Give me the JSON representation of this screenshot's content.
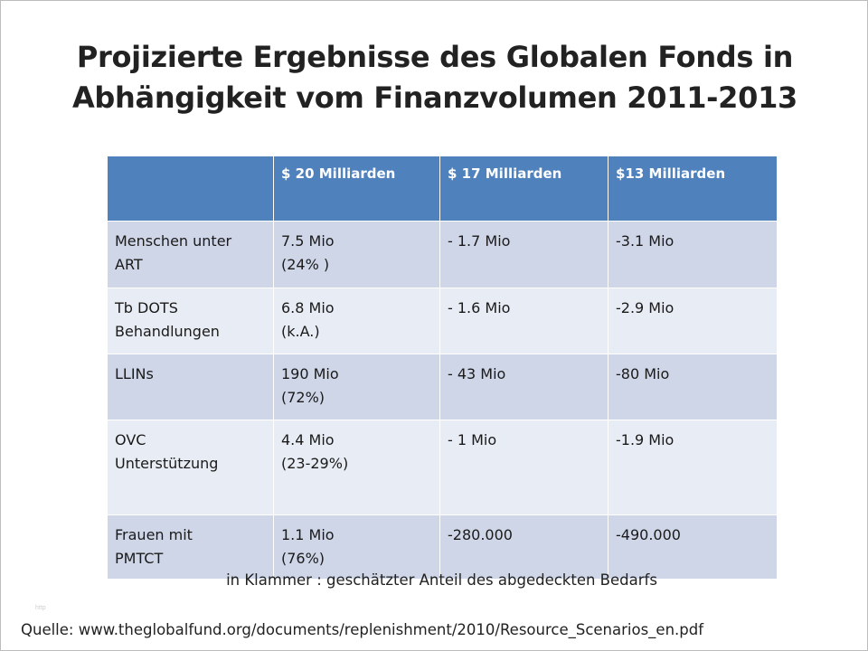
{
  "title": {
    "line1": "Projizierte Ergebnisse des Globalen Fonds in",
    "line2": "Abhängigkeit vom Finanzvolumen 2011-2013"
  },
  "table": {
    "headers": [
      "",
      "$ 20  Milliarden",
      "$ 17 Milliarden",
      "$13 Milliarden"
    ],
    "rows": [
      [
        [
          "Menschen unter",
          "ART"
        ],
        [
          "7.5 Mio",
          "(24% )"
        ],
        [
          "- 1.7 Mio"
        ],
        [
          "-3.1 Mio"
        ]
      ],
      [
        [
          "Tb DOTS",
          "Behandlungen"
        ],
        [
          "6.8 Mio",
          "(k.A.)"
        ],
        [
          "- 1.6 Mio"
        ],
        [
          "-2.9 Mio"
        ]
      ],
      [
        [
          "LLINs"
        ],
        [
          "190 Mio",
          "(72%)"
        ],
        [
          "- 43 Mio"
        ],
        [
          "-80 Mio"
        ]
      ],
      [
        [
          "OVC",
          "Unterstützung"
        ],
        [
          "4.4 Mio",
          "(23-29%)"
        ],
        [
          "- 1 Mio"
        ],
        [
          "-1.9 Mio"
        ]
      ],
      [
        [
          "Frauen mit",
          "PMTCT"
        ],
        [
          "1.1 Mio",
          "(76%)"
        ],
        [
          "-280.000"
        ],
        [
          "-490.000"
        ]
      ]
    ]
  },
  "note": "in Klammer : geschätzter Anteil des abgedeckten Bedarfs",
  "faint_mark": "http",
  "source": "Quelle: www.theglobalfund.org/documents/replenishment/2010/Resource_Scenarios_en.pdf",
  "colors": {
    "header_bg": "#4f81bd",
    "row_odd_bg": "#cfd6e8",
    "row_even_bg": "#e8ecf4"
  }
}
